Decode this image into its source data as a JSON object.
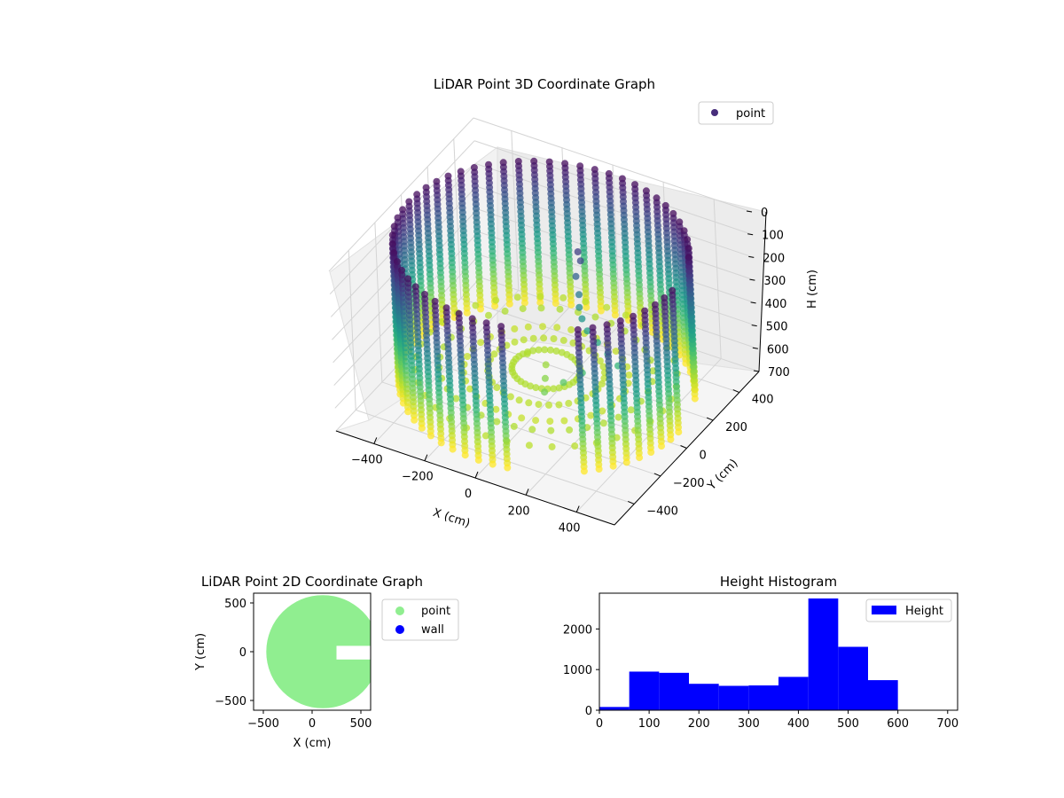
{
  "chart_data": [
    {
      "type": "scatter",
      "title": "LiDAR Point 3D Coordinate Graph",
      "xlabel": "X (cm)",
      "ylabel": "Y (cm)",
      "zlabel": "H (cm)",
      "xlim": [
        -550,
        550
      ],
      "ylim": [
        -550,
        550
      ],
      "zlim": [
        700,
        0
      ],
      "x_ticks": [
        -400,
        -200,
        0,
        200,
        400
      ],
      "y_ticks": [
        -400,
        -200,
        0,
        200,
        400
      ],
      "z_ticks": [
        0,
        100,
        200,
        300,
        400,
        500,
        600,
        700
      ],
      "x_tick_labels": [
        "−400",
        "−200",
        "0",
        "200",
        "400"
      ],
      "y_tick_labels": [
        "−400",
        "−200",
        "0",
        "200",
        "400"
      ],
      "z_tick_labels": [
        "0",
        "100",
        "200",
        "300",
        "400",
        "500",
        "600",
        "700"
      ],
      "colormap": "viridis",
      "legend": {
        "placement": "top-right",
        "entries": [
          {
            "label": "point",
            "color": "#472d7b"
          }
        ]
      },
      "geometry": {
        "wall_radius_cm": 520,
        "height_range_cm": [
          20,
          640
        ],
        "wall_angle_step_deg": 6,
        "wall_height_step_cm": 20,
        "gaps_deg": [
          [
            -74,
            -54
          ],
          [
            4,
            18
          ]
        ],
        "structure_points": [
          [
            60,
            160,
            120
          ],
          [
            80,
            140,
            140
          ],
          [
            70,
            120,
            200
          ],
          [
            90,
            100,
            260
          ],
          [
            100,
            80,
            300
          ],
          [
            120,
            60,
            330
          ],
          [
            150,
            40,
            360
          ],
          [
            200,
            20,
            380
          ],
          [
            250,
            0,
            400
          ],
          [
            300,
            -20,
            420
          ],
          [
            200,
            -100,
            440
          ],
          [
            150,
            -150,
            470
          ],
          [
            100,
            -200,
            500
          ],
          [
            50,
            -100,
            520
          ],
          [
            0,
            0,
            540
          ],
          [
            -100,
            50,
            560
          ]
        ]
      }
    },
    {
      "type": "scatter",
      "title": "LiDAR Point 2D Coordinate Graph",
      "xlabel": "X (cm)",
      "ylabel": "Y (cm)",
      "xlim": [
        -600,
        600
      ],
      "ylim": [
        -600,
        600
      ],
      "x_ticks": [
        -500,
        0,
        500
      ],
      "y_ticks": [
        -500,
        0,
        500
      ],
      "x_tick_labels": [
        "−500",
        "0",
        "500"
      ],
      "y_tick_labels": [
        "−500",
        "0",
        "500"
      ],
      "series": [
        {
          "name": "point",
          "color": "#90ee90"
        },
        {
          "name": "wall",
          "color": "#0000ff"
        }
      ],
      "legend": {
        "placement": "outside-right"
      },
      "region": {
        "shape": "disc",
        "center": [
          110,
          0
        ],
        "radius": 580,
        "notch": {
          "x_range": [
            250,
            600
          ],
          "y_range": [
            -80,
            60
          ]
        }
      }
    },
    {
      "type": "bar",
      "title": "Height Histogram",
      "legend": {
        "placement": "top-right",
        "entries": [
          {
            "label": "Height",
            "color": "#0000ff"
          }
        ]
      },
      "bin_edges": [
        0,
        60,
        120,
        180,
        240,
        300,
        360,
        420,
        480,
        540,
        600
      ],
      "values": [
        80,
        950,
        920,
        650,
        600,
        610,
        820,
        2750,
        1560,
        740
      ],
      "xlim": [
        0,
        720
      ],
      "ylim": [
        0,
        2880
      ],
      "x_ticks": [
        0,
        100,
        200,
        300,
        400,
        500,
        600,
        700
      ],
      "y_ticks": [
        0,
        1000,
        2000
      ],
      "x_tick_labels": [
        "0",
        "100",
        "200",
        "300",
        "400",
        "500",
        "600",
        "700"
      ],
      "y_tick_labels": [
        "0",
        "1000",
        "2000"
      ],
      "bar_color": "#0000ff"
    }
  ]
}
